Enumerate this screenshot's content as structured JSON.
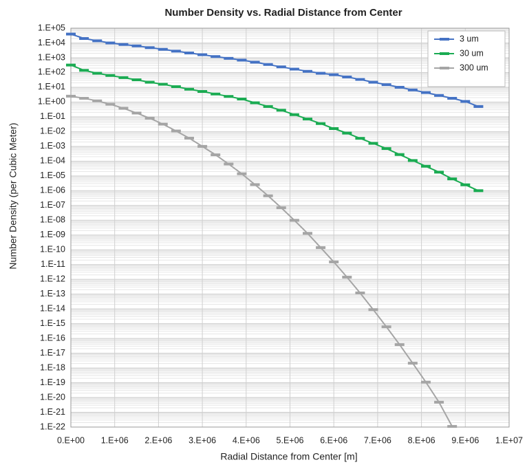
{
  "chart_data": {
    "type": "line",
    "title": "Number Density vs. Radial Distance from Center",
    "xlabel": "Radial Distance from Center [m]",
    "ylabel": "Number Density (per Cubic Meter)",
    "x": [
      0,
      300000,
      600000,
      900000,
      1200000,
      1500000,
      1800000,
      2100000,
      2400000,
      2700000,
      3000000,
      3300000,
      3600000,
      3900000,
      4200000,
      4500000,
      4800000,
      5100000,
      5400000,
      5700000,
      6000000,
      6300000,
      6600000,
      6900000,
      7200000,
      7500000,
      7800000,
      8100000,
      8400000,
      8700000,
      9000000,
      9300000
    ],
    "series": [
      {
        "name": "3 um",
        "color": "#4472c4",
        "values": [
          40000.0,
          20000.0,
          14000.0,
          10000.0,
          7900.0,
          6300.0,
          4800.0,
          3700.0,
          2800.0,
          2100.0,
          1600.0,
          1200.0,
          910.0,
          690.0,
          500.0,
          350.0,
          240.0,
          170.0,
          120.0,
          89.0,
          71.0,
          50.0,
          34.0,
          22.0,
          15.0,
          10.0,
          6.6,
          4.4,
          2.8,
          1.8,
          1.1,
          0.5
        ]
      },
      {
        "name": "30 um",
        "color": "#1aab52",
        "values": [
          320.0,
          140.0,
          89.0,
          63.0,
          45.0,
          32.0,
          22.0,
          16.0,
          11.0,
          7.4,
          5.2,
          3.5,
          2.4,
          1.6,
          0.89,
          0.5,
          0.28,
          0.14,
          0.071,
          0.035,
          0.016,
          0.0079,
          0.0035,
          0.0016,
          0.00071,
          0.00028,
          0.00011,
          4.5e-05,
          1.8e-05,
          6.3e-06,
          2.5e-06,
          1e-06
        ]
      },
      {
        "name": "300 um",
        "color": "#a5a5a5",
        "values": [
          2.5,
          1.8,
          1.2,
          0.71,
          0.38,
          0.18,
          0.081,
          0.032,
          0.011,
          0.0036,
          0.001,
          0.00027,
          6.4e-05,
          1.4e-05,
          2.6e-06,
          4.5e-07,
          7e-08,
          9.9e-09,
          1.3e-09,
          1.4e-10,
          1.5e-11,
          1.4e-12,
          1.2e-13,
          8.9e-15,
          6.1e-16,
          3.8e-17,
          2.1e-18,
          1.1e-19,
          4.8e-21,
          1.1e-22,
          null,
          null
        ]
      }
    ],
    "xlim": [
      0,
      10000000
    ],
    "xticks": [
      {
        "value": 0,
        "label": "0.E+00"
      },
      {
        "value": 1000000,
        "label": "1.E+06"
      },
      {
        "value": 2000000,
        "label": "2.E+06"
      },
      {
        "value": 3000000,
        "label": "3.E+06"
      },
      {
        "value": 4000000,
        "label": "4.E+06"
      },
      {
        "value": 5000000,
        "label": "5.E+06"
      },
      {
        "value": 6000000,
        "label": "6.E+06"
      },
      {
        "value": 7000000,
        "label": "7.E+06"
      },
      {
        "value": 8000000,
        "label": "8.E+06"
      },
      {
        "value": 9000000,
        "label": "9.E+06"
      },
      {
        "value": 10000000,
        "label": "1.E+07"
      }
    ],
    "ylim": [
      1e-22,
      100000.0
    ],
    "yscale": "log",
    "yticks": [
      {
        "value": 1e-22,
        "label": "1.E-22"
      },
      {
        "value": 1e-21,
        "label": "1.E-21"
      },
      {
        "value": 1e-20,
        "label": "1.E-20"
      },
      {
        "value": 1e-19,
        "label": "1.E-19"
      },
      {
        "value": 1e-18,
        "label": "1.E-18"
      },
      {
        "value": 1e-17,
        "label": "1.E-17"
      },
      {
        "value": 1e-16,
        "label": "1.E-16"
      },
      {
        "value": 1e-15,
        "label": "1.E-15"
      },
      {
        "value": 1e-14,
        "label": "1.E-14"
      },
      {
        "value": 1e-13,
        "label": "1.E-13"
      },
      {
        "value": 1e-12,
        "label": "1.E-12"
      },
      {
        "value": 1e-11,
        "label": "1.E-11"
      },
      {
        "value": 1e-10,
        "label": "1.E-10"
      },
      {
        "value": 1e-09,
        "label": "1.E-09"
      },
      {
        "value": 1e-08,
        "label": "1.E-08"
      },
      {
        "value": 1e-07,
        "label": "1.E-07"
      },
      {
        "value": 1e-06,
        "label": "1.E-06"
      },
      {
        "value": 1e-05,
        "label": "1.E-05"
      },
      {
        "value": 0.0001,
        "label": "1.E-04"
      },
      {
        "value": 0.001,
        "label": "1.E-03"
      },
      {
        "value": 0.01,
        "label": "1.E-02"
      },
      {
        "value": 0.1,
        "label": "1.E-01"
      },
      {
        "value": 1,
        "label": "1.E+00"
      },
      {
        "value": 10,
        "label": "1.E+01"
      },
      {
        "value": 100,
        "label": "1.E+02"
      },
      {
        "value": 1000,
        "label": "1.E+03"
      },
      {
        "value": 10000,
        "label": "1.E+04"
      },
      {
        "value": 100000,
        "label": "1.E+05"
      }
    ],
    "grid": true,
    "minor_grid": true,
    "legend": "upper right"
  }
}
